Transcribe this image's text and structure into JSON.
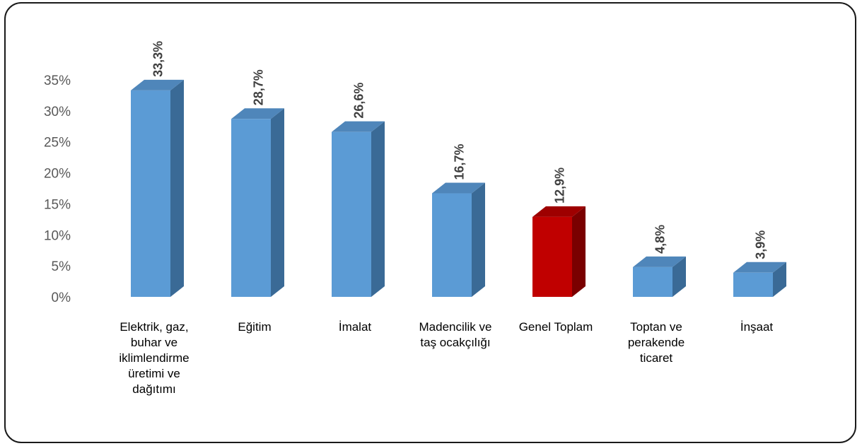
{
  "chart_data": {
    "type": "bar",
    "title": "",
    "xlabel": "",
    "ylabel": "",
    "ylim": [
      0,
      35
    ],
    "yticks": [
      "0%",
      "5%",
      "10%",
      "15%",
      "20%",
      "25%",
      "30%",
      "35%"
    ],
    "ytick_values": [
      0,
      5,
      10,
      15,
      20,
      25,
      30,
      35
    ],
    "categories": [
      [
        "Elektrik, gaz,",
        "buhar ve",
        "iklimlendirme",
        "üretimi ve",
        "dağıtımı"
      ],
      [
        "Eğitim"
      ],
      [
        "İmalat"
      ],
      [
        "Madencilik ve",
        "taş ocakçılığı"
      ],
      [
        "Genel Toplam"
      ],
      [
        "Toptan ve",
        "perakende",
        "ticaret"
      ],
      [
        "İnşaat"
      ]
    ],
    "values": [
      33.3,
      28.7,
      26.6,
      16.7,
      12.9,
      4.8,
      3.9
    ],
    "data_labels": [
      "33,3%",
      "28,7%",
      "26,6%",
      "16,7%",
      "12,9%",
      "4,8%",
      "3,9%"
    ],
    "highlight_index": 4,
    "colors": {
      "bar_front": "#5B9BD5",
      "bar_side": "#3A6A96",
      "bar_top": "#4F86BA",
      "highlight_front": "#C00000",
      "highlight_side": "#7A0000",
      "highlight_top": "#9E0000",
      "frame": "#1a1a1a"
    },
    "grid": false,
    "legend": "none"
  }
}
